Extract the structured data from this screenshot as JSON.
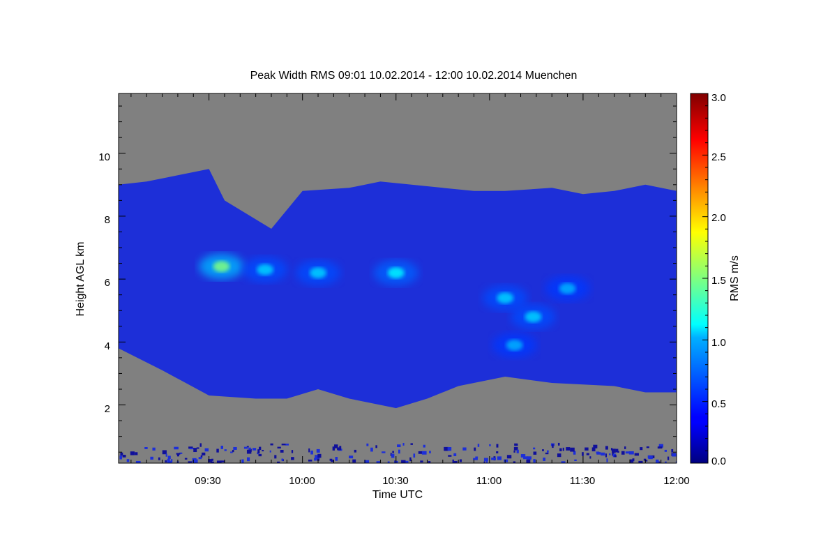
{
  "chart_data": {
    "type": "heatmap",
    "title": "Peak Width RMS   09:01 10.02.2014 - 12:00 10.02.2014 Muenchen",
    "xlabel": "Time UTC",
    "ylabel": "Height AGL km",
    "colorbar_label": "RMS m/s",
    "x_ticks": [
      "09:30",
      "10:00",
      "10:30",
      "11:00",
      "11:30",
      "12:00"
    ],
    "y_ticks": [
      "2",
      "4",
      "6",
      "8",
      "10"
    ],
    "colorbar_ticks": [
      "0.0",
      "0.5",
      "1.0",
      "1.5",
      "2.0",
      "2.5",
      "3.0"
    ],
    "xlim_minutes": [
      541,
      720
    ],
    "ylim": [
      0.15,
      11.9
    ],
    "clim": [
      0.0,
      3.0
    ],
    "colormap": "jet",
    "missing_color": "#808080",
    "cloud_top_km": [
      [
        541,
        9.0
      ],
      [
        550,
        9.1
      ],
      [
        560,
        9.3
      ],
      [
        570,
        9.5
      ],
      [
        575,
        8.5
      ],
      [
        590,
        7.6
      ],
      [
        600,
        8.8
      ],
      [
        615,
        8.9
      ],
      [
        625,
        9.1
      ],
      [
        635,
        9.0
      ],
      [
        645,
        8.9
      ],
      [
        655,
        8.8
      ],
      [
        665,
        8.8
      ],
      [
        680,
        8.9
      ],
      [
        690,
        8.7
      ],
      [
        700,
        8.8
      ],
      [
        710,
        9.0
      ],
      [
        720,
        8.8
      ]
    ],
    "cloud_base_km": [
      [
        541,
        3.8
      ],
      [
        555,
        3.1
      ],
      [
        570,
        2.3
      ],
      [
        585,
        2.2
      ],
      [
        595,
        2.2
      ],
      [
        605,
        2.5
      ],
      [
        615,
        2.2
      ],
      [
        630,
        1.9
      ],
      [
        640,
        2.2
      ],
      [
        650,
        2.6
      ],
      [
        665,
        2.9
      ],
      [
        680,
        2.7
      ],
      [
        700,
        2.6
      ],
      [
        710,
        2.4
      ],
      [
        720,
        2.4
      ]
    ],
    "features": [
      {
        "t": 574,
        "h": 6.4,
        "v": 1.5
      },
      {
        "t": 588,
        "h": 6.3,
        "v": 1.0
      },
      {
        "t": 605,
        "h": 6.2,
        "v": 1.0
      },
      {
        "t": 630,
        "h": 6.2,
        "v": 1.1
      },
      {
        "t": 665,
        "h": 5.4,
        "v": 1.0
      },
      {
        "t": 674,
        "h": 4.8,
        "v": 1.0
      },
      {
        "t": 668,
        "h": 3.9,
        "v": 0.9
      },
      {
        "t": 685,
        "h": 5.7,
        "v": 0.9
      }
    ]
  }
}
